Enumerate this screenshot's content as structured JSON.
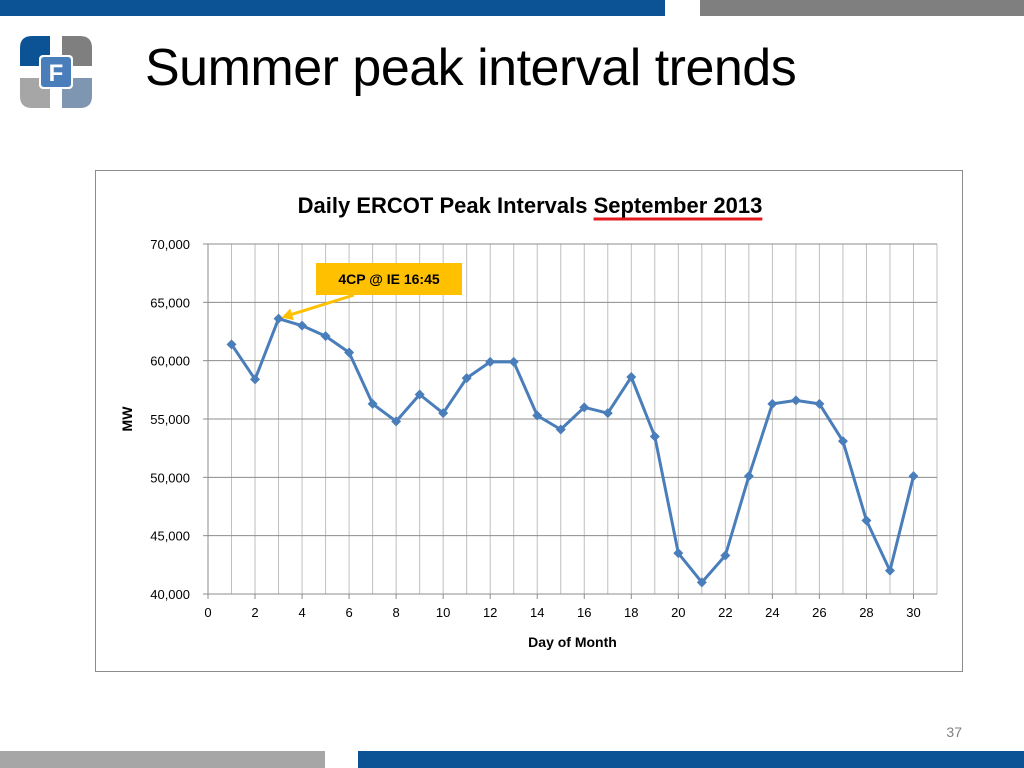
{
  "slide": {
    "title": "Summer peak interval trends",
    "page_number": "37",
    "colors": {
      "brand_blue": "#0b5394",
      "brand_gray": "#7f7f7f",
      "series": "#4a7ebb",
      "callout": "#ffc000",
      "underline": "#e31a1c"
    },
    "logo": {
      "icon": "company-f-logo",
      "letter": "F"
    }
  },
  "chart_data": {
    "type": "line",
    "title_plain": "Daily ERCOT Peak Intervals ",
    "title_emphasis": "September 2013",
    "xlabel": "Day of Month",
    "ylabel": "MW",
    "xlim": [
      0,
      31
    ],
    "ylim": [
      40000,
      70000
    ],
    "x_ticks": [
      0,
      2,
      4,
      6,
      8,
      10,
      12,
      14,
      16,
      18,
      20,
      22,
      24,
      26,
      28,
      30
    ],
    "y_ticks": [
      "40,000",
      "45,000",
      "50,000",
      "55,000",
      "60,000",
      "65,000",
      "70,000"
    ],
    "y_tick_values": [
      40000,
      45000,
      50000,
      55000,
      60000,
      65000,
      70000
    ],
    "grid": true,
    "series": [
      {
        "x": [
          1,
          2,
          3,
          4,
          5,
          6,
          7,
          8,
          9,
          10,
          11,
          12,
          13,
          14,
          15,
          16,
          17,
          18,
          19,
          20,
          21,
          22,
          23,
          24,
          25,
          26,
          27,
          28,
          29,
          30
        ],
        "y": [
          61400,
          58400,
          63600,
          63000,
          62100,
          60700,
          56300,
          54800,
          57100,
          55500,
          58500,
          59900,
          59900,
          55300,
          54100,
          56000,
          55500,
          58600,
          53500,
          43500,
          41000,
          43300,
          50100,
          56300,
          56600,
          56300,
          53100,
          46300,
          42000,
          50100
        ]
      }
    ],
    "annotation": {
      "text": "4CP @ IE 16:45",
      "x": 3,
      "y": 63600
    }
  }
}
